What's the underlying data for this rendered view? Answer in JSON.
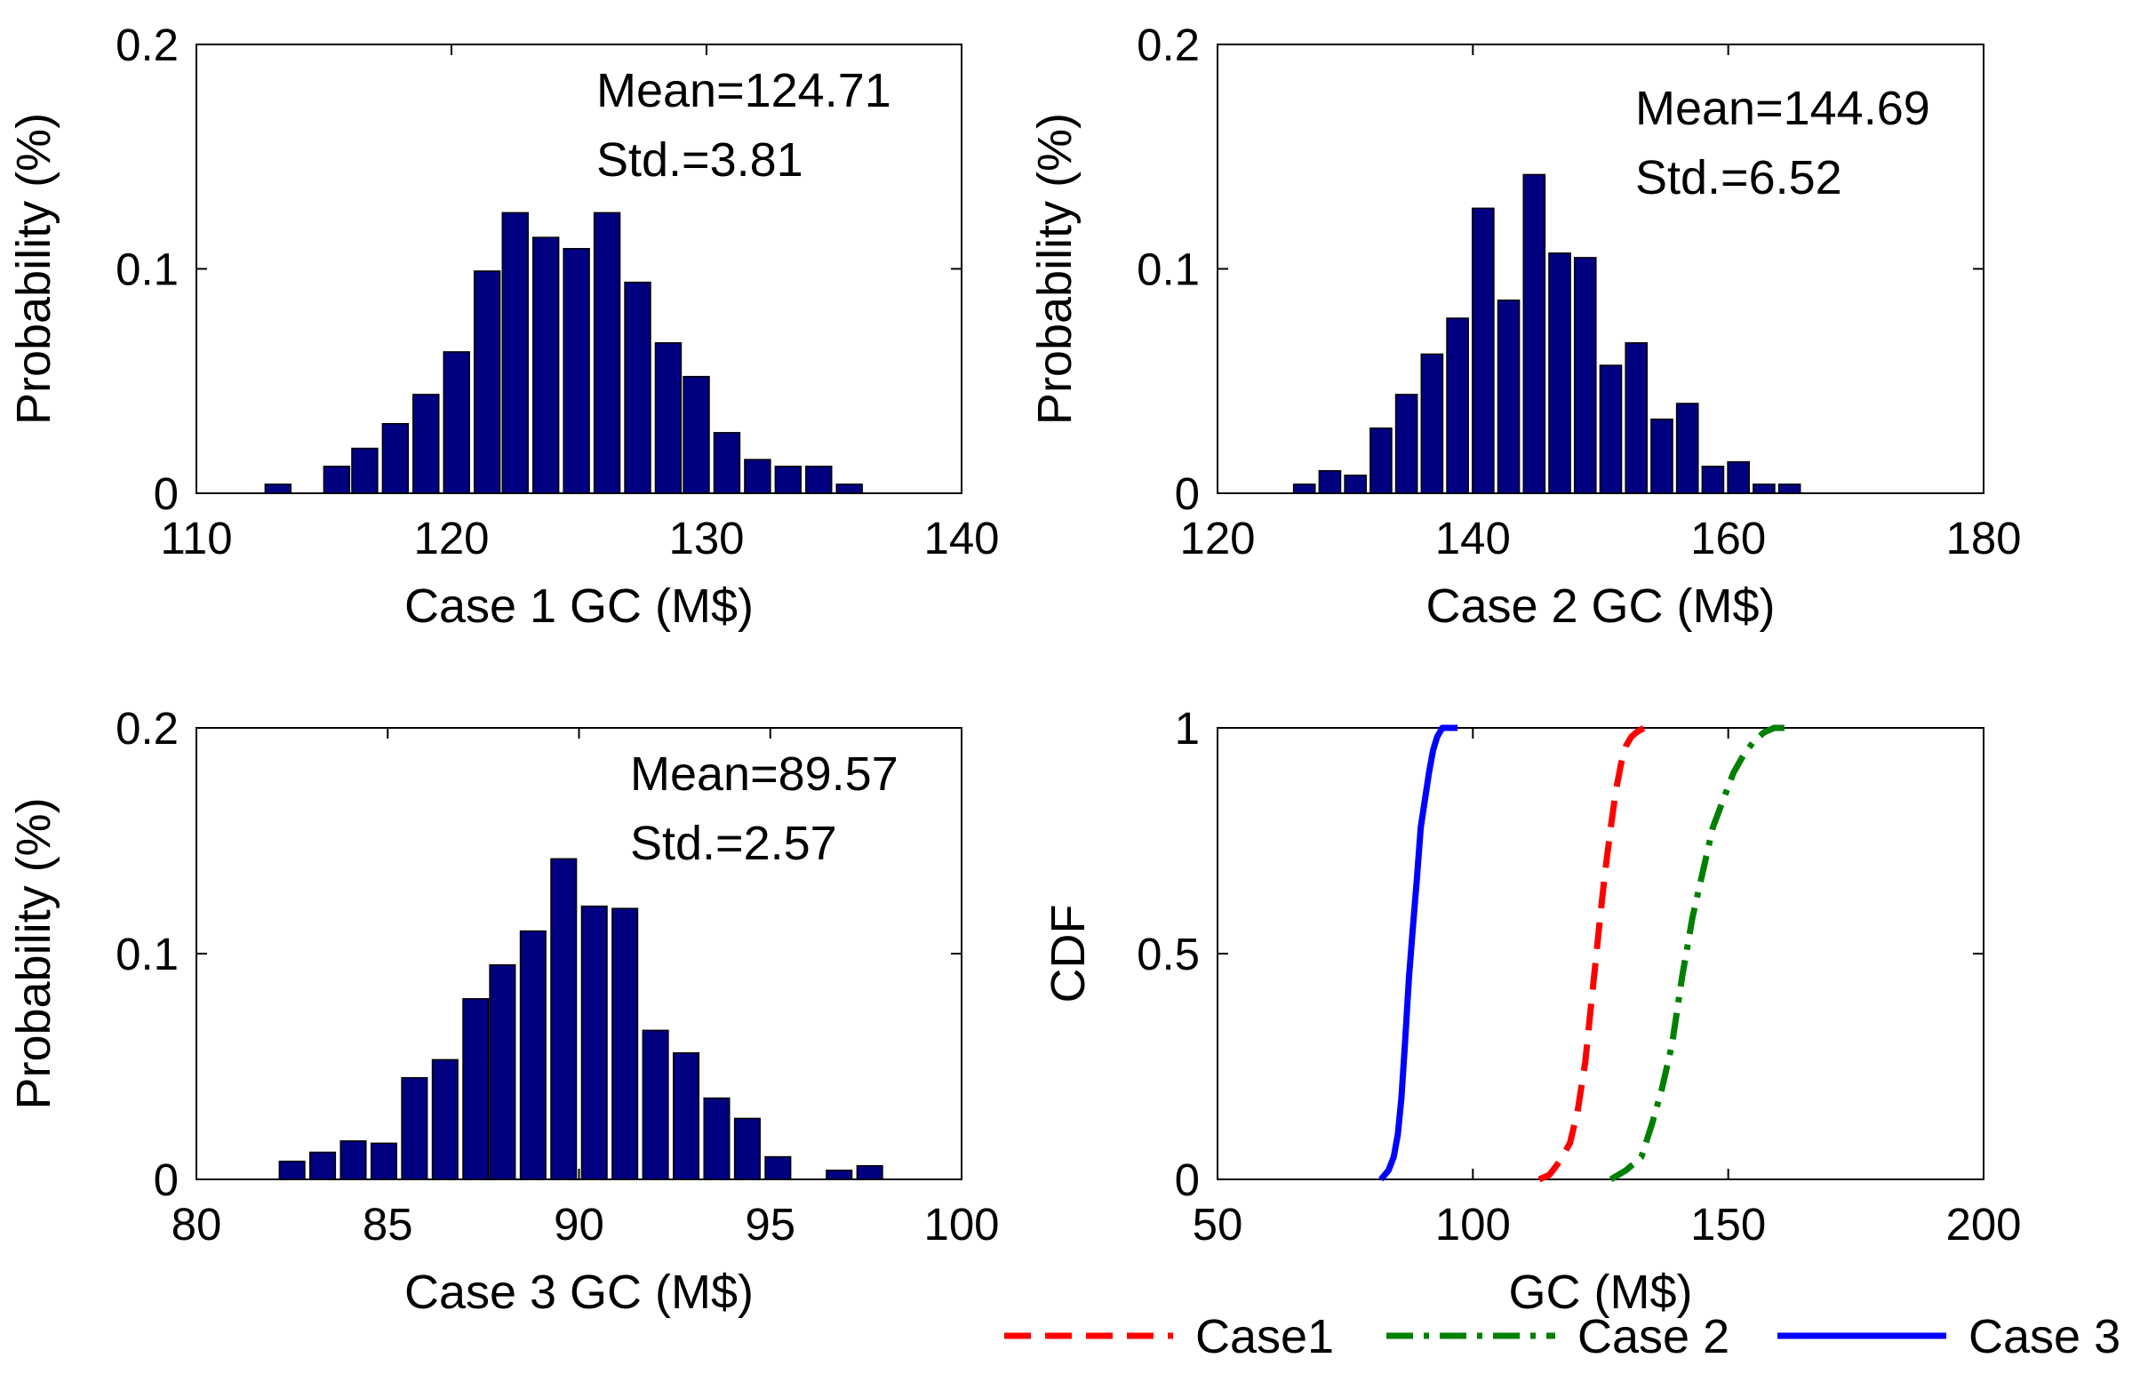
{
  "chart_data": [
    {
      "type": "bar",
      "id": "case1",
      "xlabel": "Case 1 GC (M$)",
      "ylabel": "Probability (%)",
      "xlim": [
        110,
        140
      ],
      "ylim": [
        0,
        0.2
      ],
      "xticks": [
        110,
        120,
        130,
        140
      ],
      "xtick_labels": [
        "110",
        "120",
        "130",
        "140"
      ],
      "yticks": [
        0,
        0.1,
        0.2
      ],
      "ytick_labels": [
        "0",
        "0.1",
        "0.2"
      ],
      "annotations": [
        "Mean=124.71",
        "Std.=3.81"
      ],
      "bar_color": "#000080",
      "bin_width": 1.2,
      "x": [
        113.2,
        115.5,
        116.6,
        117.8,
        119.0,
        120.2,
        121.4,
        122.5,
        123.7,
        124.9,
        126.1,
        127.3,
        128.5,
        129.6,
        130.8,
        132.0,
        133.2,
        134.4,
        135.6
      ],
      "values": [
        0.004,
        0.012,
        0.02,
        0.031,
        0.044,
        0.063,
        0.099,
        0.125,
        0.114,
        0.109,
        0.125,
        0.094,
        0.067,
        0.052,
        0.027,
        0.015,
        0.012,
        0.012,
        0.004
      ]
    },
    {
      "type": "bar",
      "id": "case2",
      "xlabel": "Case 2 GC (M$)",
      "ylabel": "Probability (%)",
      "xlim": [
        120,
        180
      ],
      "ylim": [
        0,
        0.2
      ],
      "xticks": [
        120,
        140,
        160,
        180
      ],
      "xtick_labels": [
        "120",
        "140",
        "160",
        "180"
      ],
      "yticks": [
        0,
        0.1,
        0.2
      ],
      "ytick_labels": [
        "0",
        "0.1",
        "0.2"
      ],
      "annotations": [
        "Mean=144.69",
        "Std.=6.52"
      ],
      "bar_color": "#000080",
      "bin_width": 2.0,
      "x": [
        126.8,
        128.8,
        130.8,
        132.8,
        134.8,
        136.8,
        138.8,
        140.8,
        142.8,
        144.8,
        146.8,
        148.8,
        150.8,
        152.8,
        154.8,
        156.8,
        158.8,
        160.8,
        162.8,
        164.8
      ],
      "values": [
        0.004,
        0.01,
        0.008,
        0.029,
        0.044,
        0.062,
        0.078,
        0.127,
        0.086,
        0.142,
        0.107,
        0.105,
        0.057,
        0.067,
        0.033,
        0.04,
        0.012,
        0.014,
        0.004,
        0.004
      ]
    },
    {
      "type": "bar",
      "id": "case3",
      "xlabel": "Case 3 GC (M$)",
      "ylabel": "Probability (%)",
      "xlim": [
        80,
        100
      ],
      "ylim": [
        0,
        0.2
      ],
      "xticks": [
        80,
        85,
        90,
        95,
        100
      ],
      "xtick_labels": [
        "80",
        "85",
        "90",
        "95",
        "100"
      ],
      "yticks": [
        0,
        0.1,
        0.2
      ],
      "ytick_labels": [
        "0",
        "0.1",
        "0.2"
      ],
      "annotations": [
        "Mean=89.57",
        "Std.=2.57"
      ],
      "bar_color": "#000080",
      "bin_width": 0.79,
      "x": [
        82.5,
        83.3,
        84.1,
        84.9,
        85.7,
        86.5,
        87.3,
        88.0,
        88.8,
        89.6,
        90.4,
        91.2,
        92.0,
        92.8,
        93.6,
        94.4,
        95.2,
        96.8,
        97.6
      ],
      "values": [
        0.008,
        0.012,
        0.017,
        0.016,
        0.045,
        0.053,
        0.08,
        0.095,
        0.11,
        0.142,
        0.121,
        0.12,
        0.066,
        0.056,
        0.036,
        0.027,
        0.01,
        0.004,
        0.006
      ]
    },
    {
      "type": "line",
      "id": "cdf",
      "xlabel": "GC (M$)",
      "ylabel": "CDF",
      "xlim": [
        50,
        200
      ],
      "ylim": [
        0,
        1
      ],
      "xticks": [
        50,
        100,
        150,
        200
      ],
      "xtick_labels": [
        "50",
        "100",
        "150",
        "200"
      ],
      "yticks": [
        0,
        0.5,
        1
      ],
      "ytick_labels": [
        "0",
        "0.5",
        "1"
      ],
      "legend_position": "bottom",
      "series": [
        {
          "name": "Case1",
          "color": "#ff0000",
          "dash": "dashed",
          "x": [
            113.0,
            115.0,
            117.0,
            119.0,
            120.5,
            122.0,
            123.0,
            124.0,
            125.0,
            126.0,
            127.0,
            128.0,
            129.0,
            130.0,
            131.0,
            132.0,
            133.5,
            135.0
          ],
          "y": [
            0.0,
            0.01,
            0.04,
            0.08,
            0.15,
            0.26,
            0.37,
            0.48,
            0.59,
            0.69,
            0.78,
            0.86,
            0.92,
            0.96,
            0.98,
            0.99,
            1.0,
            1.0
          ]
        },
        {
          "name": "Case 2",
          "color": "#008000",
          "dash": "dashdot",
          "x": [
            127.0,
            130.0,
            133.0,
            135.0,
            137.0,
            139.0,
            141.0,
            143.0,
            145.0,
            147.0,
            149.0,
            151.0,
            153.0,
            155.0,
            157.0,
            159.0,
            162.0
          ],
          "y": [
            0.0,
            0.02,
            0.05,
            0.12,
            0.2,
            0.3,
            0.45,
            0.58,
            0.68,
            0.78,
            0.84,
            0.9,
            0.94,
            0.97,
            0.99,
            1.0,
            1.0
          ]
        },
        {
          "name": "Case 3",
          "color": "#0000ff",
          "dash": "solid",
          "x": [
            82.0,
            83.5,
            84.5,
            85.3,
            86.0,
            86.7,
            87.5,
            88.2,
            89.0,
            89.8,
            90.6,
            91.4,
            92.2,
            93.0,
            94.0,
            95.5,
            97.0
          ],
          "y": [
            0.0,
            0.02,
            0.05,
            0.1,
            0.18,
            0.3,
            0.45,
            0.55,
            0.66,
            0.78,
            0.84,
            0.9,
            0.95,
            0.98,
            1.0,
            1.0,
            1.0
          ]
        }
      ]
    }
  ]
}
